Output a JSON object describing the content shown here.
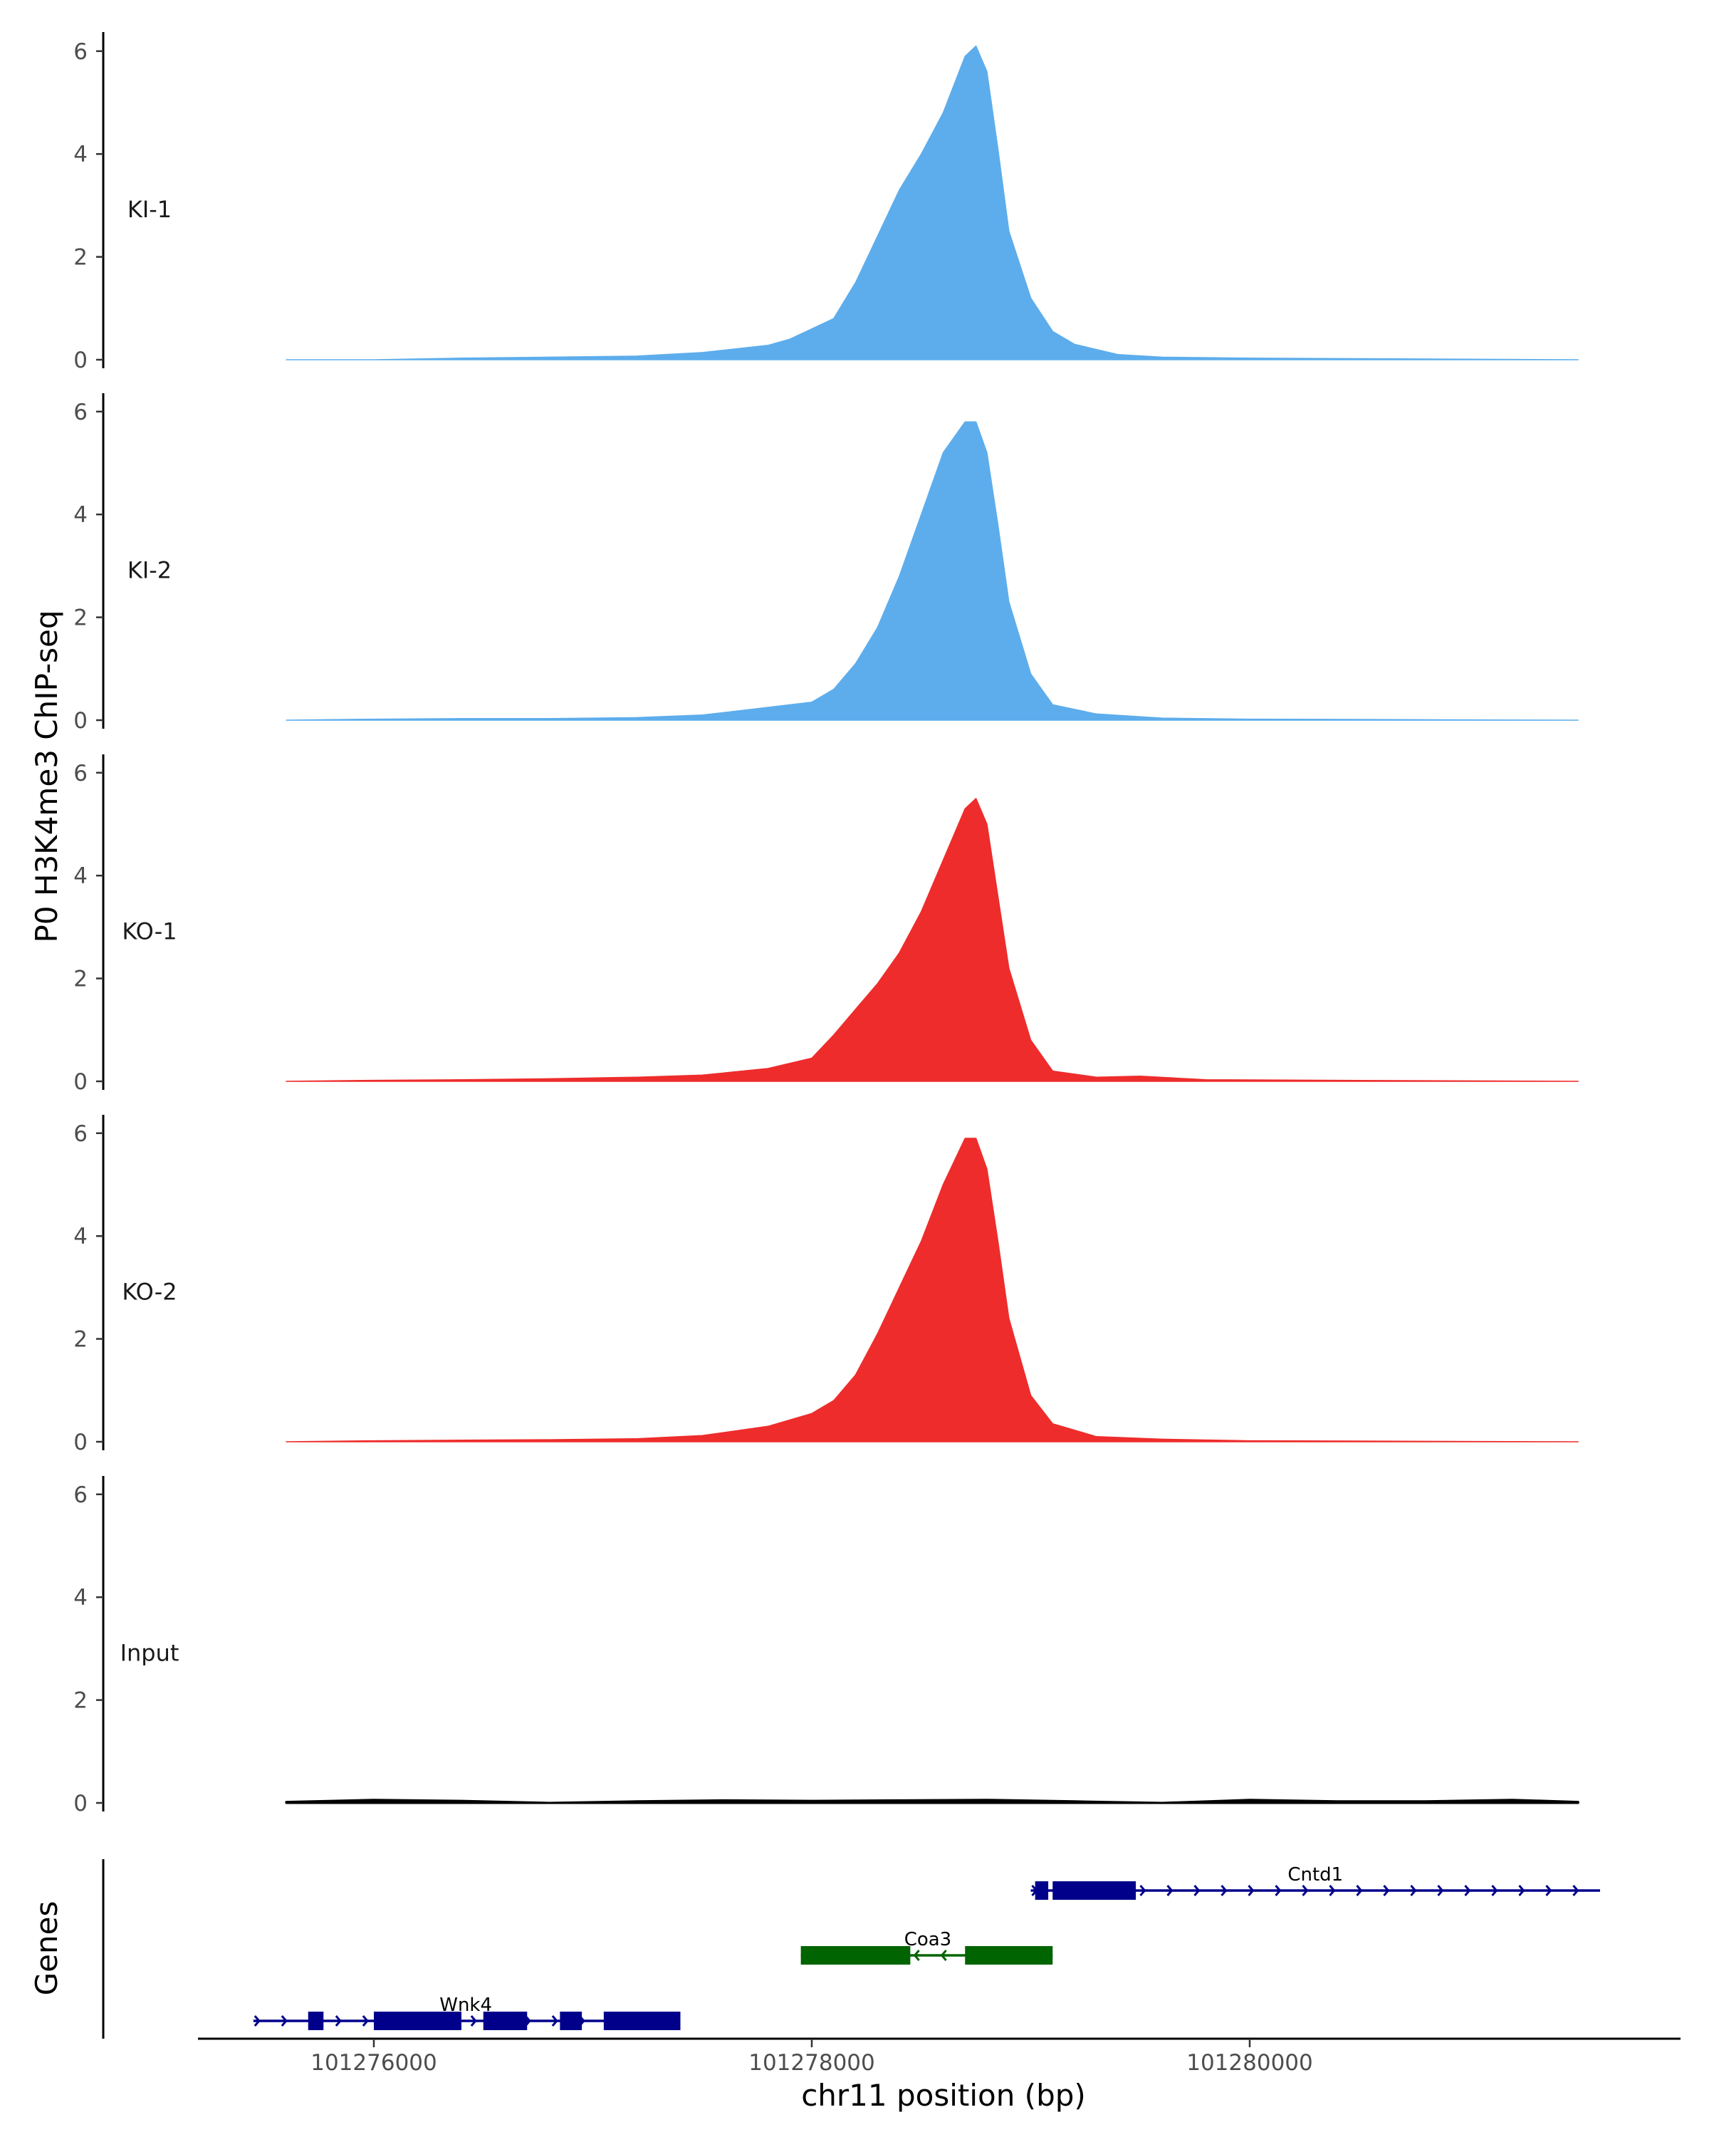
{
  "chart_data": {
    "type": "area",
    "ylabel": "P0 H3K4me3 ChIP-seq",
    "xlabel": "chr11 position (bp)",
    "genes_label": "Genes",
    "ylim": [
      0,
      6.3
    ],
    "y_ticks": [
      0,
      2,
      4,
      6
    ],
    "x_ticks": [
      101276000,
      101278000,
      101280000
    ],
    "xlim": [
      101275200,
      101282000
    ],
    "tracks": [
      {
        "name": "KI-1",
        "color": "#5dadec",
        "x": [
          101275600,
          101276000,
          101276400,
          101276800,
          101277200,
          101277500,
          101277800,
          101277900,
          101278000,
          101278100,
          101278200,
          101278300,
          101278400,
          101278500,
          101278600,
          101278700,
          101278750,
          101278800,
          101278850,
          101278900,
          101279000,
          101279100,
          101279200,
          101279400,
          101279600,
          101280000,
          101280600,
          101281500
        ],
        "y": [
          0.0,
          0.0,
          0.03,
          0.05,
          0.07,
          0.14,
          0.28,
          0.4,
          0.6,
          0.8,
          1.5,
          2.4,
          3.3,
          4.0,
          4.8,
          5.9,
          6.1,
          5.6,
          4.1,
          2.5,
          1.2,
          0.55,
          0.3,
          0.1,
          0.05,
          0.03,
          0.02,
          0.0
        ]
      },
      {
        "name": "KI-2",
        "color": "#5dadec",
        "x": [
          101275600,
          101276000,
          101276400,
          101276800,
          101277200,
          101277500,
          101277800,
          101278000,
          101278100,
          101278200,
          101278300,
          101278400,
          101278500,
          101278600,
          101278700,
          101278750,
          101278800,
          101278850,
          101278900,
          101279000,
          101279100,
          101279300,
          101279600,
          101280000,
          101281500
        ],
        "y": [
          0.0,
          0.02,
          0.03,
          0.03,
          0.05,
          0.1,
          0.25,
          0.35,
          0.6,
          1.1,
          1.8,
          2.8,
          4.0,
          5.2,
          5.8,
          5.8,
          5.2,
          3.8,
          2.3,
          0.9,
          0.3,
          0.12,
          0.04,
          0.02,
          0.0
        ]
      },
      {
        "name": "KO-1",
        "color": "#ee2c2c",
        "x": [
          101275600,
          101276000,
          101276400,
          101276800,
          101277200,
          101277500,
          101277800,
          101278000,
          101278100,
          101278200,
          101278300,
          101278400,
          101278500,
          101278600,
          101278700,
          101278750,
          101278800,
          101278850,
          101278900,
          101279000,
          101279100,
          101279300,
          101279500,
          101279800,
          101281500
        ],
        "y": [
          0.0,
          0.02,
          0.03,
          0.05,
          0.08,
          0.12,
          0.25,
          0.45,
          0.9,
          1.4,
          1.9,
          2.5,
          3.3,
          4.3,
          5.3,
          5.5,
          5.0,
          3.6,
          2.2,
          0.8,
          0.2,
          0.08,
          0.1,
          0.03,
          0.0
        ]
      },
      {
        "name": "KO-2",
        "color": "#ee2c2c",
        "x": [
          101275600,
          101276000,
          101276400,
          101276800,
          101277200,
          101277500,
          101277800,
          101278000,
          101278100,
          101278200,
          101278300,
          101278400,
          101278500,
          101278600,
          101278700,
          101278750,
          101278800,
          101278850,
          101278900,
          101279000,
          101279100,
          101279300,
          101279600,
          101280000,
          101281500
        ],
        "y": [
          0.0,
          0.02,
          0.03,
          0.04,
          0.06,
          0.12,
          0.3,
          0.55,
          0.8,
          1.3,
          2.1,
          3.0,
          3.9,
          5.0,
          5.9,
          5.9,
          5.3,
          3.9,
          2.4,
          0.9,
          0.35,
          0.1,
          0.05,
          0.02,
          0.0
        ]
      },
      {
        "name": "Input",
        "color": "#000000",
        "x": [
          101275600,
          101276000,
          101276400,
          101276800,
          101277200,
          101277600,
          101278000,
          101278400,
          101278800,
          101279200,
          101279600,
          101280000,
          101280400,
          101280800,
          101281200,
          101281500
        ],
        "y": [
          0.02,
          0.06,
          0.04,
          0.0,
          0.03,
          0.05,
          0.04,
          0.05,
          0.06,
          0.03,
          0.0,
          0.06,
          0.03,
          0.03,
          0.06,
          0.02
        ]
      }
    ],
    "genes": [
      {
        "name": "Cntd1",
        "strand": "+",
        "color": "#00008b",
        "row": 0,
        "start": 101279000,
        "end": 101281600,
        "exons": [
          [
            101279020,
            101279080
          ],
          [
            101279100,
            101279480
          ]
        ],
        "label_x": 101280300
      },
      {
        "name": "Coa3",
        "strand": "-",
        "color": "#006400",
        "row": 1,
        "start": 101277950,
        "end": 101279100,
        "exons": [
          [
            101277950,
            101278450
          ],
          [
            101278700,
            101279100
          ]
        ],
        "label_x": 101278530
      },
      {
        "name": "Wnk4",
        "strand": "+",
        "color": "#00008b",
        "row": 2,
        "start": 101275450,
        "end": 101277400,
        "exons": [
          [
            101275700,
            101275770
          ],
          [
            101276000,
            101276400
          ],
          [
            101276500,
            101276700
          ],
          [
            101276850,
            101276950
          ],
          [
            101277050,
            101277400
          ]
        ],
        "label_x": 101276420
      }
    ]
  }
}
